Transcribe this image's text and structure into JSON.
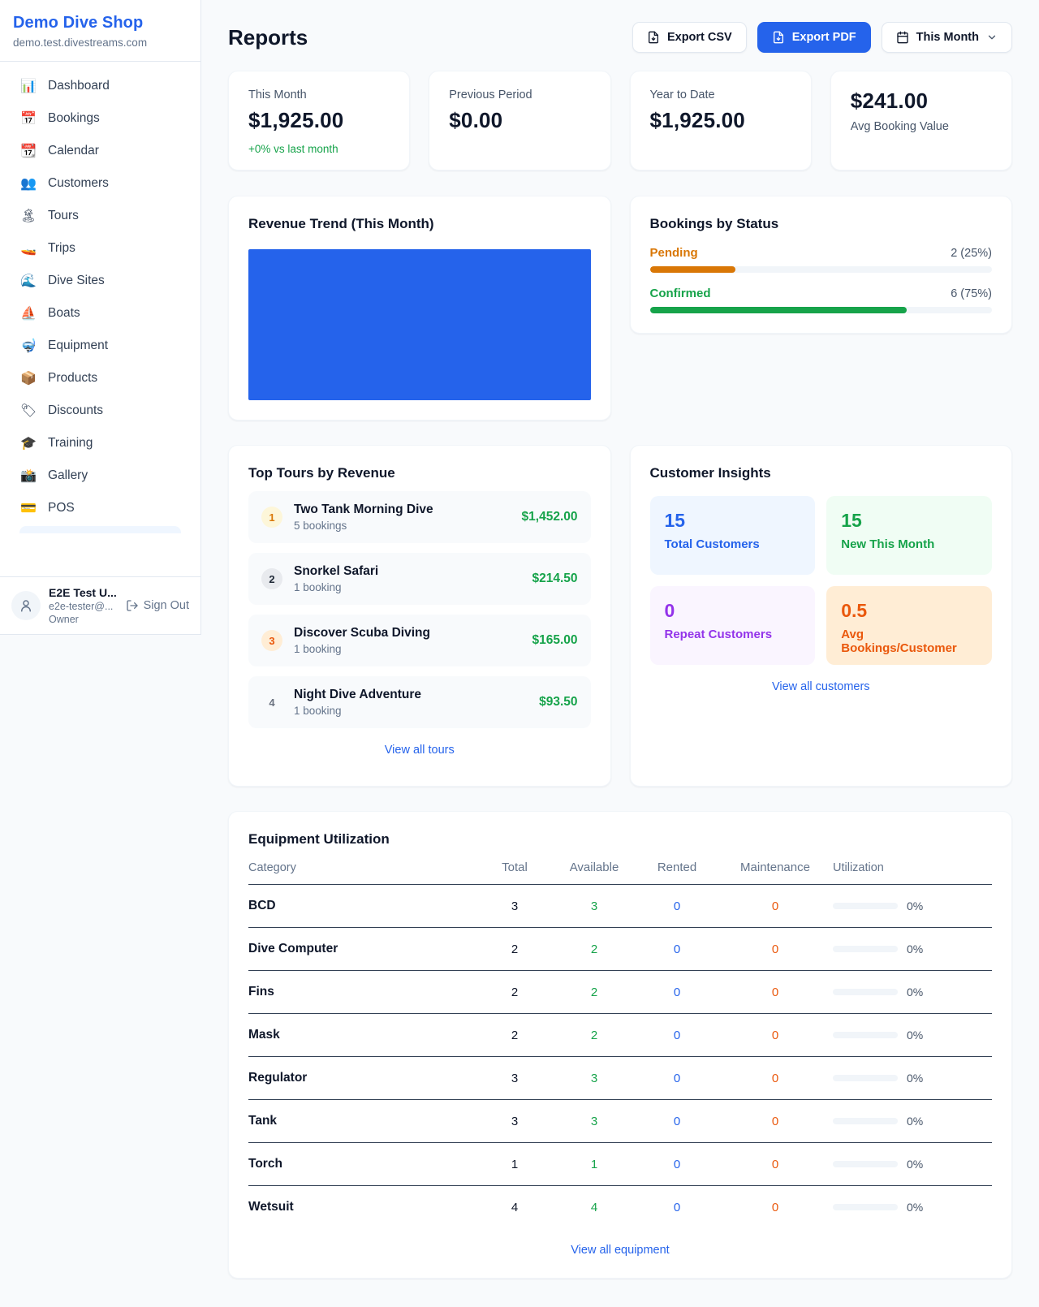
{
  "colors": {
    "accent": "#2563eb",
    "green": "#16a34a",
    "orange_pending": "#d97706",
    "orange_deep": "#ea580c",
    "purple": "#9333ea",
    "text_dark": "#0f172a",
    "text_muted": "#64748b"
  },
  "sidebar": {
    "shop_name": "Demo Dive Shop",
    "shop_domain": "demo.test.divestreams.com",
    "items": [
      {
        "label": "Dashboard",
        "glyph": "📊",
        "icon": "bar-chart-icon"
      },
      {
        "label": "Bookings",
        "glyph": "📅",
        "icon": "calendar-date-icon"
      },
      {
        "label": "Calendar",
        "glyph": "📆",
        "icon": "tear-off-calendar-icon"
      },
      {
        "label": "Customers",
        "glyph": "👥",
        "icon": "people-icon"
      },
      {
        "label": "Tours",
        "glyph": "🏝",
        "icon": "island-icon"
      },
      {
        "label": "Trips",
        "glyph": "🚤",
        "icon": "speedboat-icon"
      },
      {
        "label": "Dive Sites",
        "glyph": "🌊",
        "icon": "wave-icon"
      },
      {
        "label": "Boats",
        "glyph": "⛵",
        "icon": "sailboat-icon"
      },
      {
        "label": "Equipment",
        "glyph": "🤿",
        "icon": "diving-mask-icon"
      },
      {
        "label": "Products",
        "glyph": "📦",
        "icon": "package-icon"
      },
      {
        "label": "Discounts",
        "glyph": "🏷",
        "icon": "tag-icon"
      },
      {
        "label": "Training",
        "glyph": "🎓",
        "icon": "graduation-cap-icon"
      },
      {
        "label": "Gallery",
        "glyph": "📸",
        "icon": "camera-icon"
      },
      {
        "label": "POS",
        "glyph": "💳",
        "icon": "credit-card-icon"
      }
    ],
    "user": {
      "name": "E2E Test U...",
      "email": "e2e-tester@...",
      "role": "Owner",
      "sign_out_label": "Sign Out"
    }
  },
  "header": {
    "title": "Reports",
    "export_csv_label": "Export CSV",
    "export_pdf_label": "Export PDF",
    "period_label": "This Month"
  },
  "stats": {
    "this_month": {
      "label": "This Month",
      "value": "$1,925.00",
      "delta": "+0% vs last month"
    },
    "previous_period": {
      "label": "Previous Period",
      "value": "$0.00"
    },
    "year_to_date": {
      "label": "Year to Date",
      "value": "$1,925.00"
    },
    "avg_booking": {
      "value": "$241.00",
      "label": "Avg Booking Value"
    }
  },
  "revenue_trend": {
    "title": "Revenue Trend (This Month)",
    "bar_color": "#2563eb"
  },
  "bookings_by_status": {
    "title": "Bookings by Status",
    "rows": [
      {
        "label": "Pending",
        "display": "2 (25%)",
        "count": 2,
        "pct": 25,
        "color": "#d97706"
      },
      {
        "label": "Confirmed",
        "display": "6 (75%)",
        "count": 6,
        "pct": 75,
        "color": "#16a34a"
      }
    ]
  },
  "top_tours": {
    "title": "Top Tours by Revenue",
    "items": [
      {
        "rank": "1",
        "name": "Two Tank Morning Dive",
        "bookings": "5 bookings",
        "revenue": "$1,452.00"
      },
      {
        "rank": "2",
        "name": "Snorkel Safari",
        "bookings": "1 booking",
        "revenue": "$214.50"
      },
      {
        "rank": "3",
        "name": "Discover Scuba Diving",
        "bookings": "1 booking",
        "revenue": "$165.00"
      },
      {
        "rank": "4",
        "name": "Night Dive Adventure",
        "bookings": "1 booking",
        "revenue": "$93.50"
      }
    ],
    "link": "View all tours"
  },
  "customer_insights": {
    "title": "Customer Insights",
    "tiles": [
      {
        "value": "15",
        "label": "Total Customers"
      },
      {
        "value": "15",
        "label": "New This Month"
      },
      {
        "value": "0",
        "label": "Repeat Customers"
      },
      {
        "value": "0.5",
        "label": "Avg Bookings/Customer"
      }
    ],
    "link": "View all customers"
  },
  "equipment": {
    "title": "Equipment Utilization",
    "columns": [
      "Category",
      "Total",
      "Available",
      "Rented",
      "Maintenance",
      "Utilization"
    ],
    "rows": [
      {
        "category": "BCD",
        "total": "3",
        "available": "3",
        "rented": "0",
        "maintenance": "0",
        "utilization": "0%"
      },
      {
        "category": "Dive Computer",
        "total": "2",
        "available": "2",
        "rented": "0",
        "maintenance": "0",
        "utilization": "0%"
      },
      {
        "category": "Fins",
        "total": "2",
        "available": "2",
        "rented": "0",
        "maintenance": "0",
        "utilization": "0%"
      },
      {
        "category": "Mask",
        "total": "2",
        "available": "2",
        "rented": "0",
        "maintenance": "0",
        "utilization": "0%"
      },
      {
        "category": "Regulator",
        "total": "3",
        "available": "3",
        "rented": "0",
        "maintenance": "0",
        "utilization": "0%"
      },
      {
        "category": "Tank",
        "total": "3",
        "available": "3",
        "rented": "0",
        "maintenance": "0",
        "utilization": "0%"
      },
      {
        "category": "Torch",
        "total": "1",
        "available": "1",
        "rented": "0",
        "maintenance": "0",
        "utilization": "0%"
      },
      {
        "category": "Wetsuit",
        "total": "4",
        "available": "4",
        "rented": "0",
        "maintenance": "0",
        "utilization": "0%"
      }
    ],
    "link": "View all equipment"
  },
  "chart_data": [
    {
      "type": "bar",
      "title": "Revenue Trend (This Month)",
      "categories": [
        "This Month"
      ],
      "values": [
        1925
      ],
      "xlabel": "",
      "ylabel": "",
      "legend": false,
      "grid": false,
      "note": "single solid full-plot bar, no axes/ticks/labels visible",
      "bar_color": "#2563eb"
    },
    {
      "type": "bar",
      "orientation": "horizontal",
      "title": "Bookings by Status",
      "categories": [
        "Pending",
        "Confirmed"
      ],
      "values": [
        2,
        6
      ],
      "percentages": [
        25,
        75
      ],
      "value_labels": [
        "2 (25%)",
        "6 (75%)"
      ],
      "colors": [
        "#d97706",
        "#16a34a"
      ],
      "xlim": [
        0,
        100
      ],
      "grid": false,
      "legend": false
    }
  ]
}
